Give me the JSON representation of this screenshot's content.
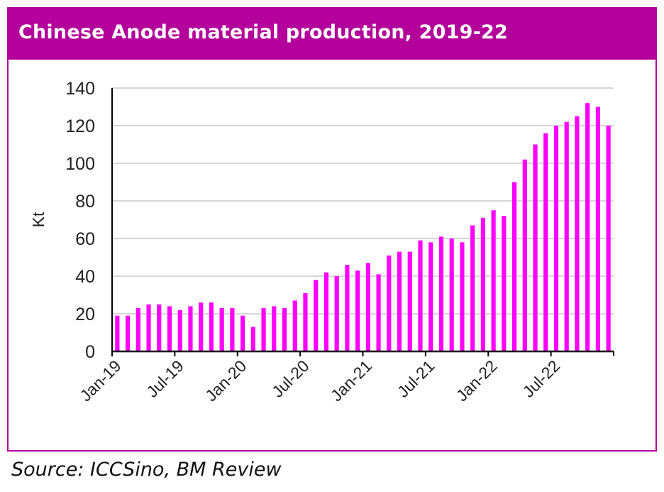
{
  "header": {
    "title": "Chinese Anode material production, 2019-22"
  },
  "source": "Source: ICCSino, BM Review",
  "colors": {
    "accent": "#b3009a",
    "bar": "#ff00ff",
    "grid": "#c8c8c8"
  },
  "chart_data": {
    "type": "bar",
    "title": "Chinese Anode material production, 2019-22",
    "ylabel": "Kt",
    "xlabel": "",
    "ylim": [
      0,
      140
    ],
    "yticks": [
      0,
      20,
      40,
      60,
      80,
      100,
      120,
      140
    ],
    "grid": true,
    "legend": "none",
    "tick_labels": [
      "Jan-19",
      "Jul-19",
      "Jan-20",
      "Jul-20",
      "Jan-21",
      "Jul-21",
      "Jan-22",
      "Jul-22"
    ],
    "tick_label_indices": [
      0,
      6,
      12,
      18,
      24,
      30,
      36,
      42
    ],
    "categories": [
      "Jan-19",
      "Feb-19",
      "Mar-19",
      "Apr-19",
      "May-19",
      "Jun-19",
      "Jul-19",
      "Aug-19",
      "Sep-19",
      "Oct-19",
      "Nov-19",
      "Dec-19",
      "Jan-20",
      "Feb-20",
      "Mar-20",
      "Apr-20",
      "May-20",
      "Jun-20",
      "Jul-20",
      "Aug-20",
      "Sep-20",
      "Oct-20",
      "Nov-20",
      "Dec-20",
      "Jan-21",
      "Feb-21",
      "Mar-21",
      "Apr-21",
      "May-21",
      "Jun-21",
      "Jul-21",
      "Aug-21",
      "Sep-21",
      "Oct-21",
      "Nov-21",
      "Dec-21",
      "Jan-22",
      "Feb-22",
      "Mar-22",
      "Apr-22",
      "May-22",
      "Jun-22",
      "Jul-22",
      "Aug-22",
      "Sep-22",
      "Oct-22",
      "Nov-22",
      "Dec-22"
    ],
    "values": [
      19,
      19,
      23,
      25,
      25,
      24,
      22,
      24,
      26,
      26,
      23,
      23,
      19,
      13,
      23,
      24,
      23,
      27,
      31,
      38,
      42,
      40,
      46,
      43,
      47,
      41,
      51,
      53,
      53,
      59,
      58,
      61,
      60,
      58,
      67,
      71,
      75,
      72,
      90,
      102,
      110,
      116,
      120,
      122,
      125,
      132,
      130,
      120
    ]
  }
}
